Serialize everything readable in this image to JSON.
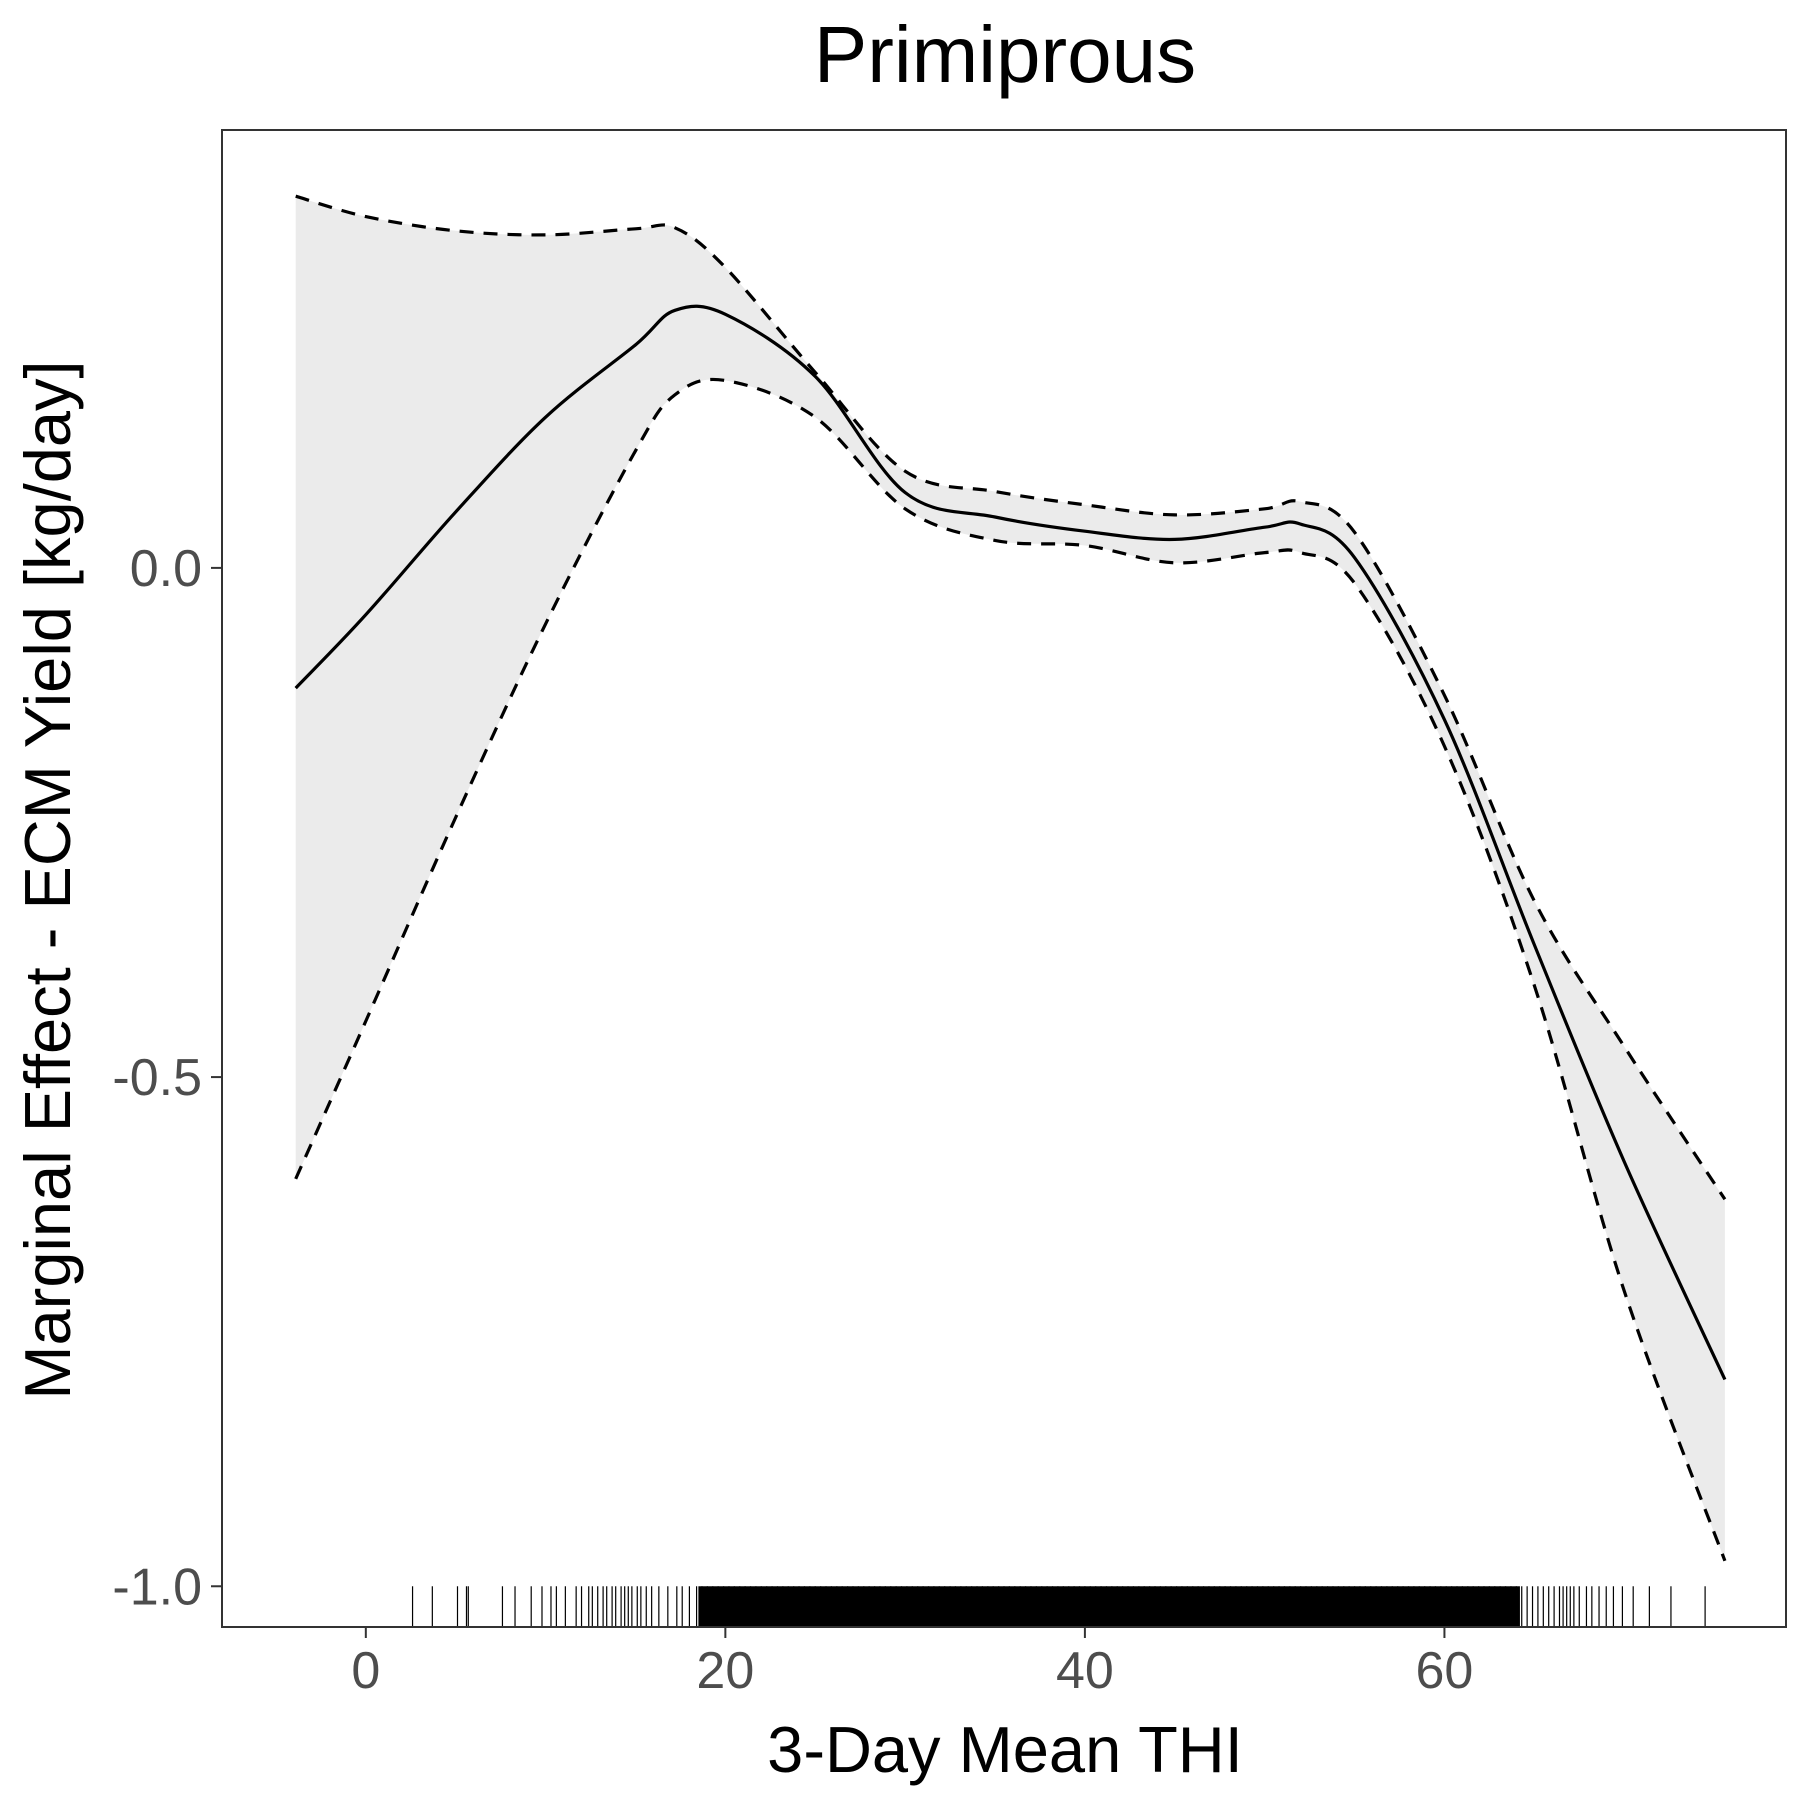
{
  "chart_data": {
    "type": "line",
    "title": "Primiprous",
    "xlabel": "3-Day Mean THI",
    "ylabel": "Marginal Effect - ECM Yield [kg/day]",
    "xlim": [
      -8,
      79
    ],
    "ylim": [
      -1.04,
      0.43
    ],
    "x_ticks": [
      0,
      20,
      40,
      60
    ],
    "y_ticks": [
      -1.0,
      -0.5,
      0.0
    ],
    "x_tick_labels": [
      "0",
      "20",
      "40",
      "60"
    ],
    "y_tick_labels": [
      "-1.0",
      "-0.5",
      "0.0"
    ],
    "grid": false,
    "colors": {
      "line": "#000000",
      "ribbon": "#ebebeb",
      "panel_border": "#333333",
      "tick_label": "#4d4d4d"
    },
    "x": [
      -3.9,
      0,
      5,
      10,
      15,
      17.2,
      20,
      25,
      30,
      35,
      40,
      45,
      50,
      52,
      55,
      60,
      65,
      70,
      75.6
    ],
    "series": [
      {
        "values": [
          -0.118,
          -0.046,
          0.055,
          0.148,
          0.219,
          0.253,
          0.249,
          0.188,
          0.074,
          0.05,
          0.036,
          0.028,
          0.04,
          0.043,
          0.01,
          -0.149,
          -0.37,
          -0.583,
          -0.797
        ],
        "style": "solid"
      },
      {
        "values": [
          0.365,
          0.345,
          0.331,
          0.327,
          0.333,
          0.334,
          0.295,
          0.192,
          0.095,
          0.075,
          0.062,
          0.052,
          0.058,
          0.065,
          0.035,
          -0.125,
          -0.327,
          -0.47,
          -0.62
        ],
        "style": "dashed"
      },
      {
        "values": [
          -0.6,
          -0.445,
          -0.245,
          -0.055,
          0.115,
          0.17,
          0.184,
          0.148,
          0.058,
          0.027,
          0.022,
          0.005,
          0.015,
          0.015,
          -0.015,
          -0.175,
          -0.41,
          -0.71,
          -0.975
        ],
        "style": "dashed"
      }
    ],
    "rug": [
      2.6,
      3.7,
      5.1,
      5.6,
      5.7,
      7.6,
      8.3,
      9.2,
      9.8,
      10.3,
      10.6,
      11.1,
      11.7,
      12.0,
      12.4,
      12.6,
      12.9,
      13.2,
      13.4,
      13.7,
      13.9,
      14.2,
      14.4,
      14.6,
      14.8,
      15.1,
      15.3,
      15.6,
      15.9,
      16.3,
      16.8,
      17.3,
      17.6,
      18.0,
      18.4,
      18.7,
      19.0,
      19.3,
      19.6,
      19.9,
      20.2,
      20.5,
      20.8,
      21.1,
      21.4,
      21.7,
      22.0,
      22.3,
      22.6,
      22.9,
      23.2,
      23.5,
      23.8,
      24.1,
      24.4,
      24.7,
      25.0,
      25.3,
      25.6,
      25.9,
      26.2,
      26.5,
      26.8,
      27.1,
      27.4,
      27.7,
      28.0,
      28.3,
      28.6,
      28.9,
      29.2,
      29.5,
      29.8,
      30.1,
      30.4,
      30.7,
      31.0,
      31.3,
      31.6,
      31.9,
      32.2,
      32.5,
      32.8,
      33.1,
      33.4,
      33.7,
      34.0,
      34.3,
      34.6,
      34.9,
      35.2,
      35.5,
      35.8,
      36.1,
      36.4,
      36.7,
      37.0,
      37.3,
      37.6,
      37.9,
      38.2,
      38.5,
      38.8,
      39.1,
      39.4,
      39.7,
      40.0,
      40.3,
      40.6,
      40.9,
      41.2,
      41.5,
      41.8,
      42.1,
      42.4,
      42.7,
      43.0,
      43.3,
      43.6,
      43.9,
      44.2,
      44.5,
      44.8,
      45.1,
      45.4,
      45.7,
      46.0,
      46.3,
      46.6,
      46.9,
      47.2,
      47.5,
      47.8,
      48.1,
      48.4,
      48.7,
      49.0,
      49.3,
      49.6,
      49.9,
      50.2,
      50.5,
      50.8,
      51.1,
      51.4,
      51.7,
      52.0,
      52.3,
      52.6,
      52.9,
      53.2,
      53.5,
      53.8,
      54.1,
      54.4,
      54.7,
      55.0,
      55.3,
      55.6,
      55.9,
      56.2,
      56.5,
      56.8,
      57.1,
      57.4,
      57.7,
      58.0,
      58.3,
      58.6,
      58.9,
      59.2,
      59.5,
      59.8,
      60.1,
      60.4,
      60.7,
      61.0,
      61.3,
      61.6,
      61.9,
      62.2,
      62.5,
      62.8,
      63.1,
      63.4,
      63.7,
      64.0,
      64.3,
      64.6,
      64.9,
      65.2,
      65.5,
      65.8,
      66.1,
      66.4,
      66.6,
      66.8,
      67.0,
      67.2,
      67.5,
      67.9,
      68.2,
      68.6,
      69.0,
      69.4,
      69.9,
      70.5,
      71.4,
      72.6,
      74.5
    ]
  }
}
